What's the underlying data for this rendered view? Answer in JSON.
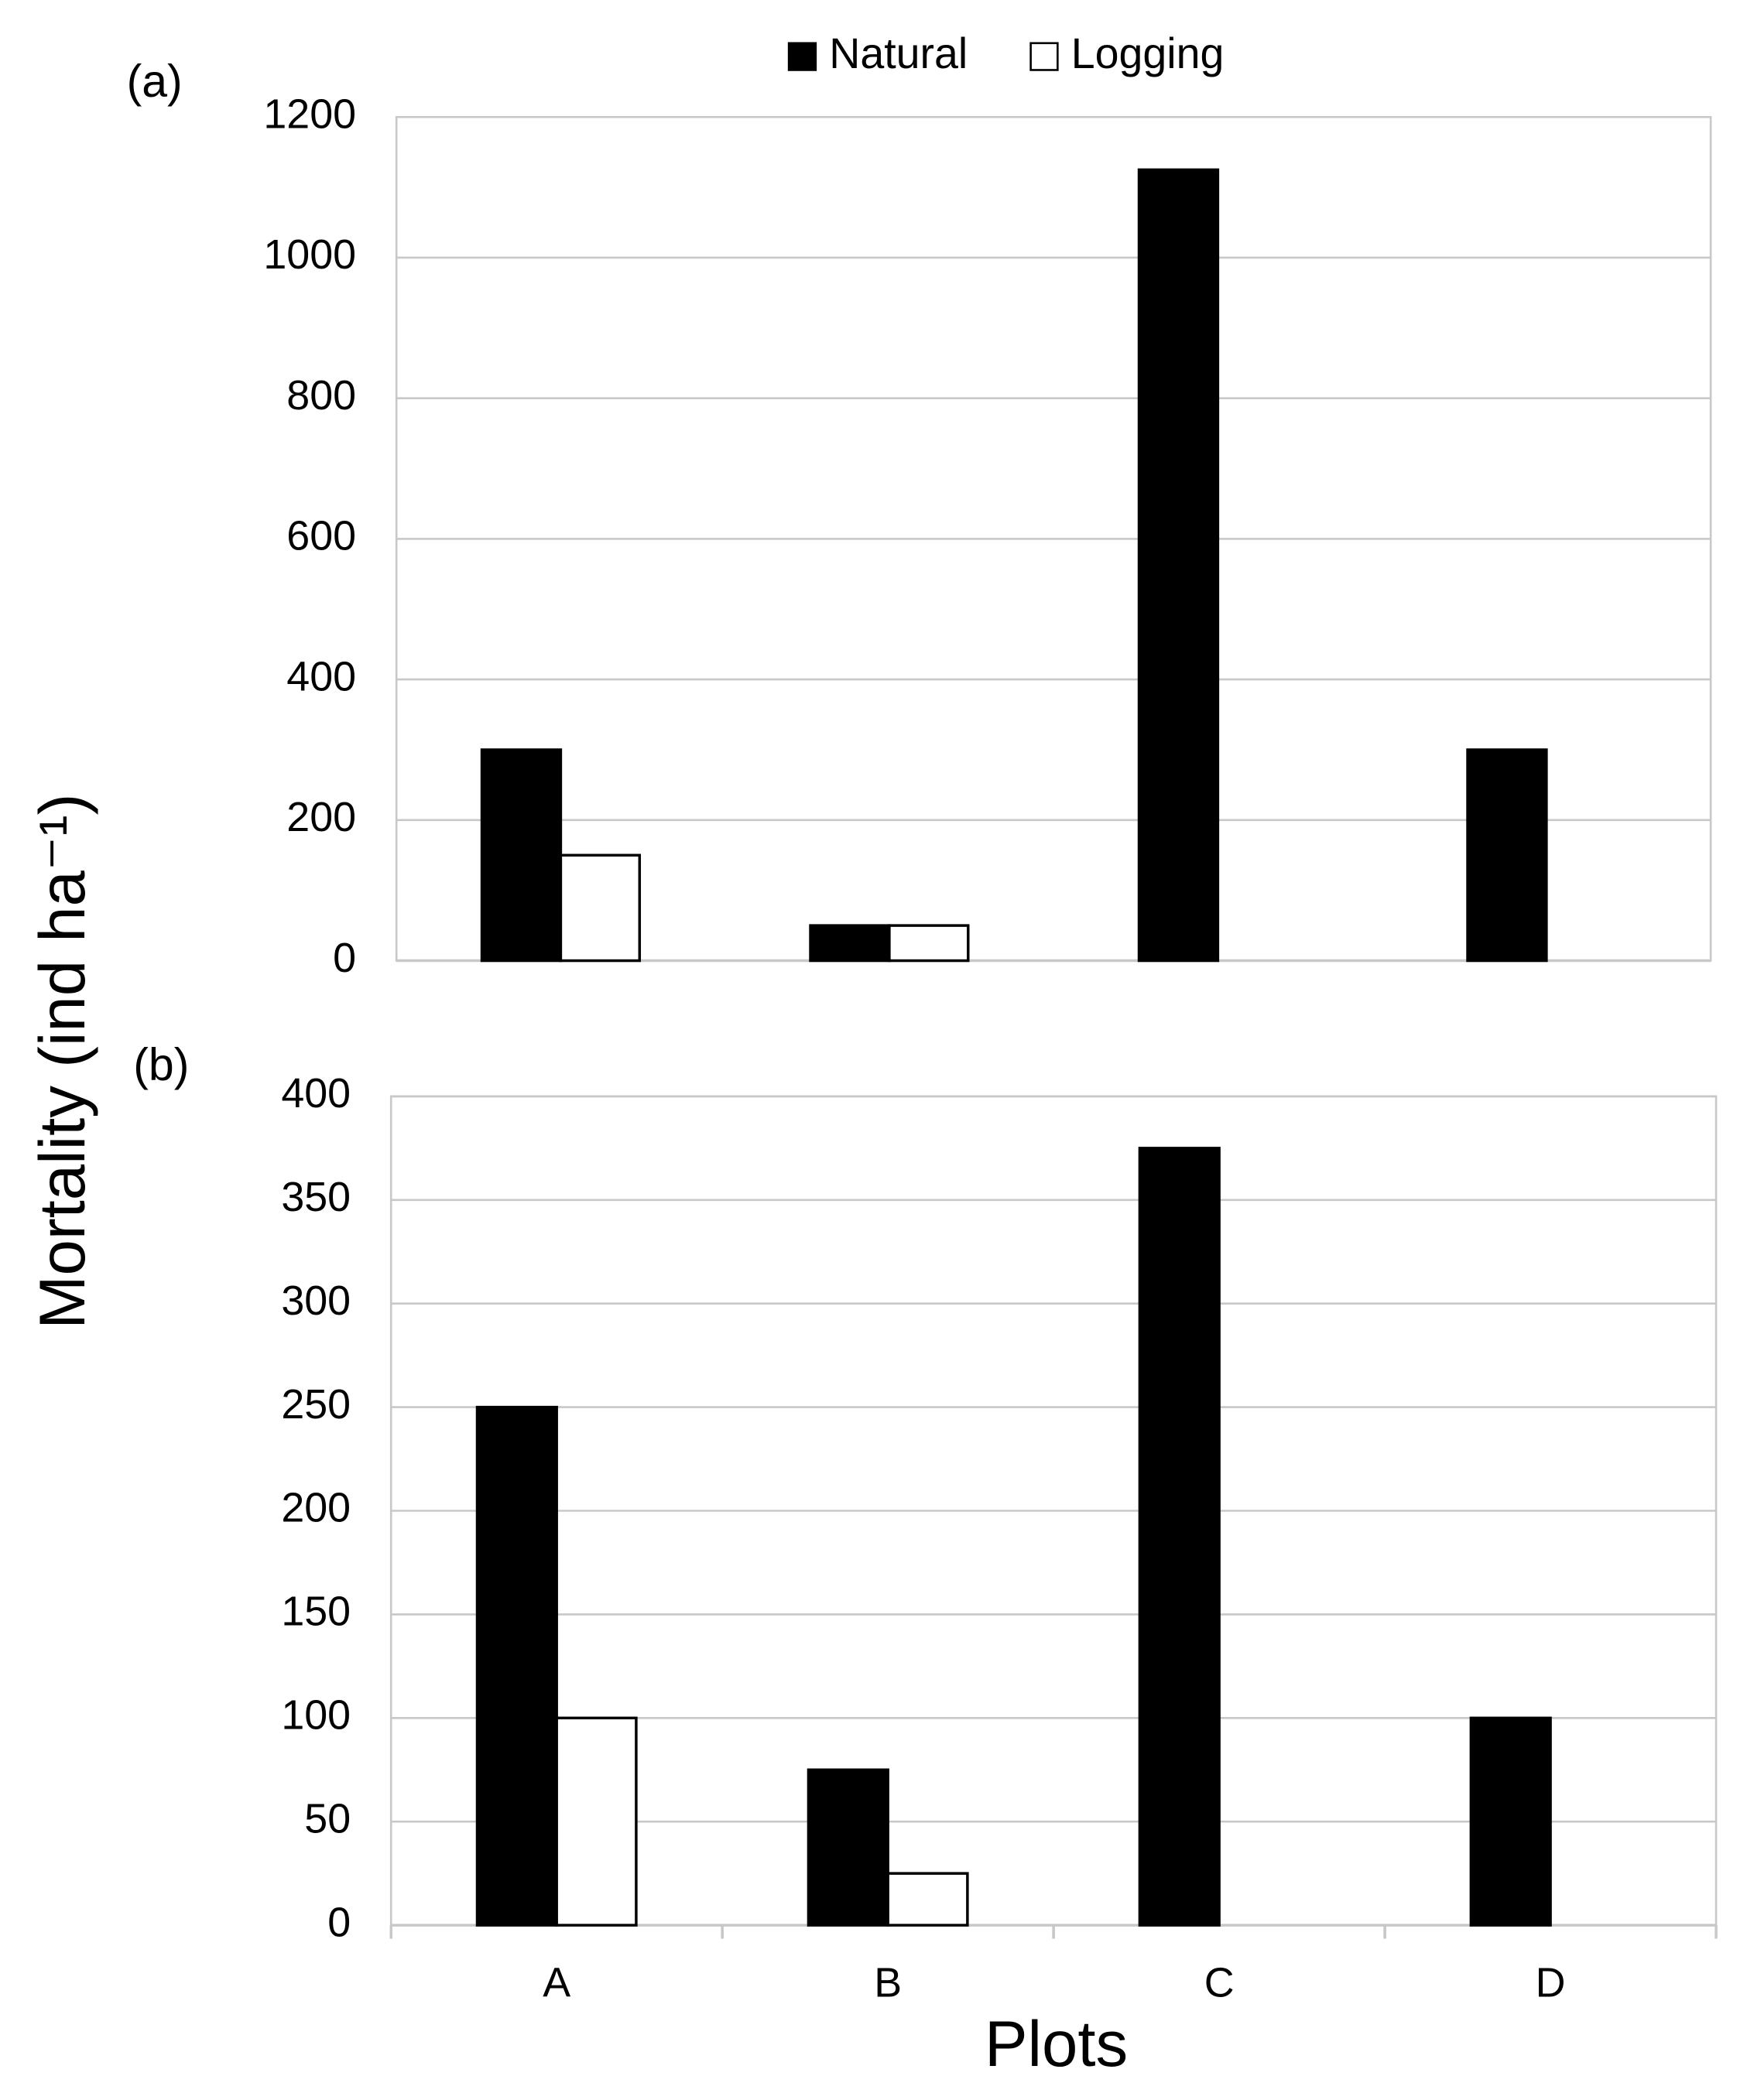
{
  "chart_data": [
    {
      "type": "bar",
      "panel_label": "(a)",
      "y_label": "Mortality (ind ha⁻¹)",
      "categories": [
        null,
        null,
        null,
        null
      ],
      "series": [
        {
          "name": "Natural",
          "color": "#000000",
          "values": [
            300,
            50,
            1125,
            300
          ]
        },
        {
          "name": "Logging",
          "color": "#ffffff",
          "values": [
            150,
            50,
            0,
            0
          ]
        }
      ],
      "ylim": [
        0,
        1200
      ],
      "yticks": [
        0,
        200,
        400,
        600,
        800,
        1000,
        1200
      ],
      "grid": true
    },
    {
      "type": "bar",
      "panel_label": "(b)",
      "x_label": "Plots",
      "categories": [
        "A",
        "B",
        "C",
        "D"
      ],
      "series": [
        {
          "name": "Natural",
          "color": "#000000",
          "values": [
            250,
            75,
            375,
            100
          ]
        },
        {
          "name": "Logging",
          "color": "#ffffff",
          "values": [
            100,
            25,
            0,
            0
          ]
        }
      ],
      "ylim": [
        0,
        400
      ],
      "yticks": [
        0,
        50,
        100,
        150,
        200,
        250,
        300,
        350,
        400
      ],
      "grid": true
    }
  ]
}
